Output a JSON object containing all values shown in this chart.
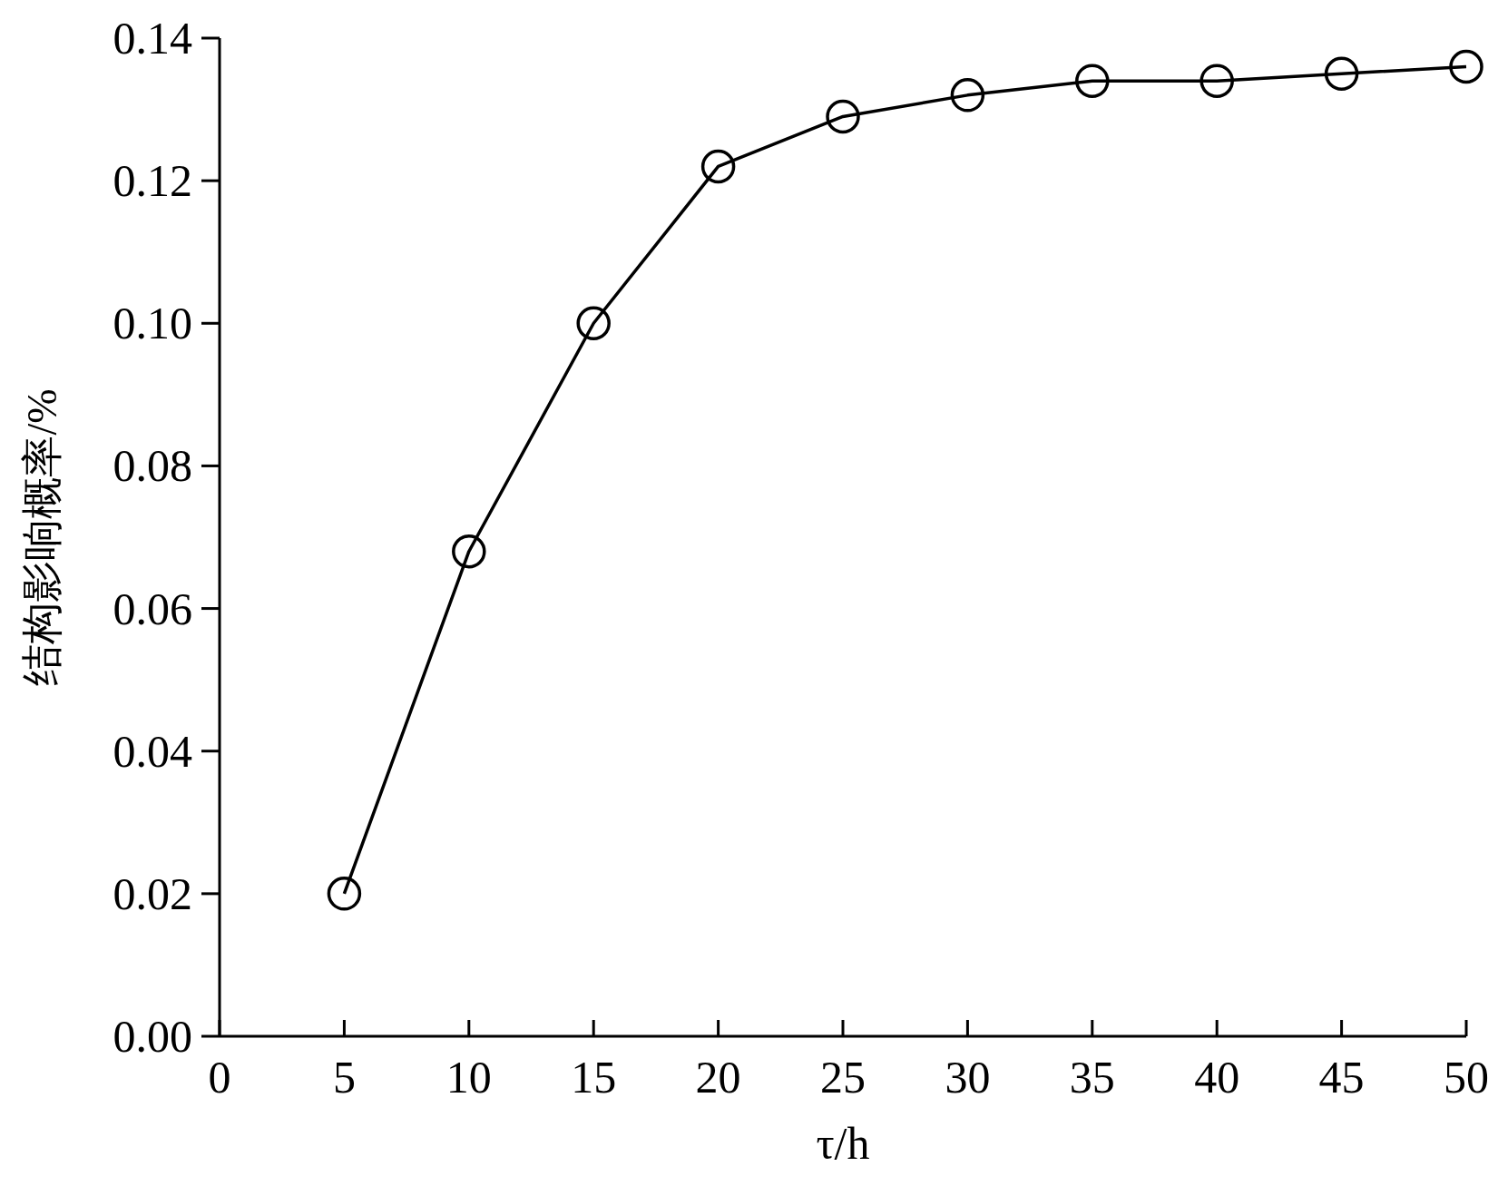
{
  "chart_data": {
    "type": "line",
    "xlabel": "τ/h",
    "ylabel": "结构影响概率/%",
    "x": [
      5,
      10,
      15,
      20,
      25,
      30,
      35,
      40,
      45,
      50
    ],
    "series": [
      {
        "color": "#000000",
        "values": [
          0.02,
          0.068,
          0.1,
          0.122,
          0.129,
          0.132,
          0.134,
          0.134,
          0.135,
          0.136
        ]
      }
    ],
    "xlim": [
      0,
      50
    ],
    "xticks": [
      0,
      5,
      10,
      15,
      20,
      25,
      30,
      35,
      40,
      45,
      50
    ],
    "ylim": [
      0,
      0.14
    ],
    "yticks": [
      {
        "value": 0,
        "label": "0.00"
      },
      {
        "value": 0.02,
        "label": "0.02"
      },
      {
        "value": 0.04,
        "label": "0.04"
      },
      {
        "value": 0.06,
        "label": "0.06"
      },
      {
        "value": 0.08,
        "label": "0.08"
      },
      {
        "value": 0.1,
        "label": "0.10"
      },
      {
        "value": 0.12,
        "label": "0.12"
      },
      {
        "value": 0.14,
        "label": "0.14"
      }
    ],
    "marker": "circle",
    "line_style": "solid",
    "grid": false
  }
}
